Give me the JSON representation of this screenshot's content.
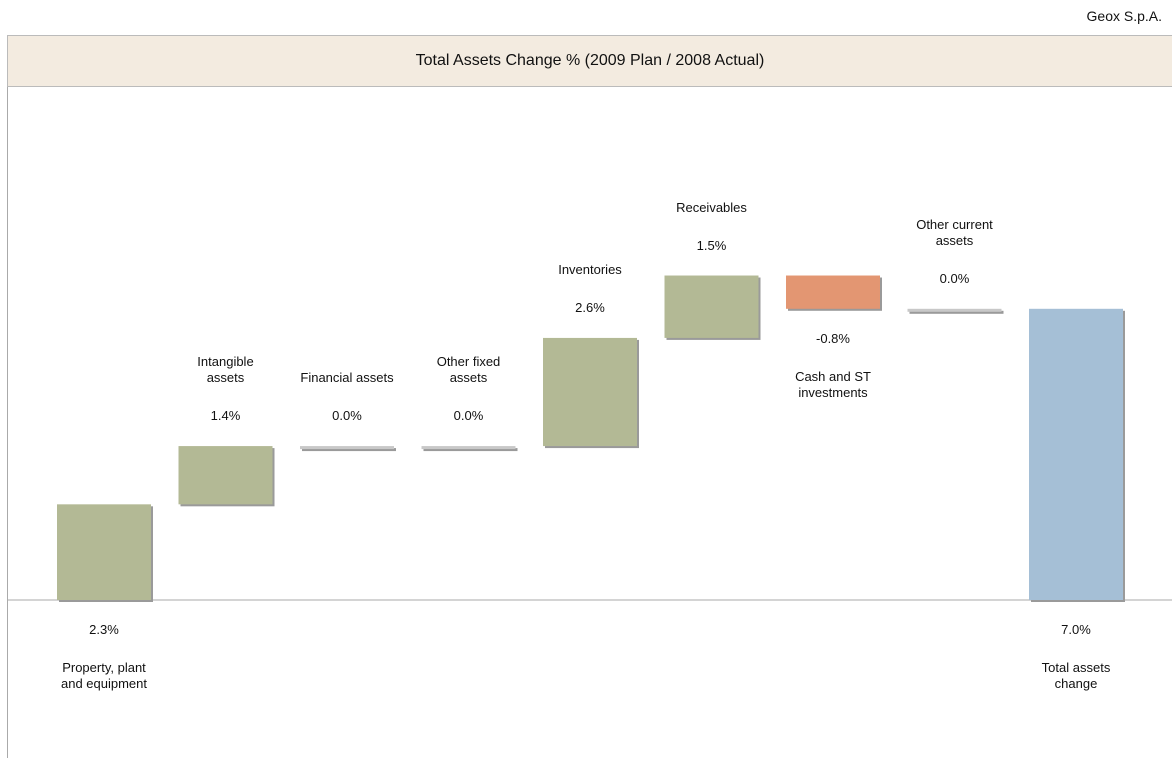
{
  "company": "Geox S.p.A.",
  "chart_data": {
    "type": "waterfall",
    "title": "Total Assets Change % (2009 Plan / 2008 Actual)",
    "categories": [
      "Property, plant and equipment",
      "Intangible assets",
      "Financial assets",
      "Other fixed assets",
      "Inventories",
      "Receivables",
      "Cash and ST investments",
      "Other current assets",
      "Total assets change"
    ],
    "values": [
      2.3,
      1.4,
      0.0,
      0.0,
      2.6,
      1.5,
      -0.8,
      0.0,
      7.0
    ],
    "value_labels": [
      "2.3%",
      "1.4%",
      "0.0%",
      "0.0%",
      "2.6%",
      "1.5%",
      "-0.8%",
      "0.0%",
      "7.0%"
    ],
    "colors": [
      "#b3b995",
      "#b3b995",
      "#c8c8c8",
      "#c8c8c8",
      "#b3b995",
      "#b3b995",
      "#e39672",
      "#c8c8c8",
      "#a5bfd6"
    ]
  }
}
